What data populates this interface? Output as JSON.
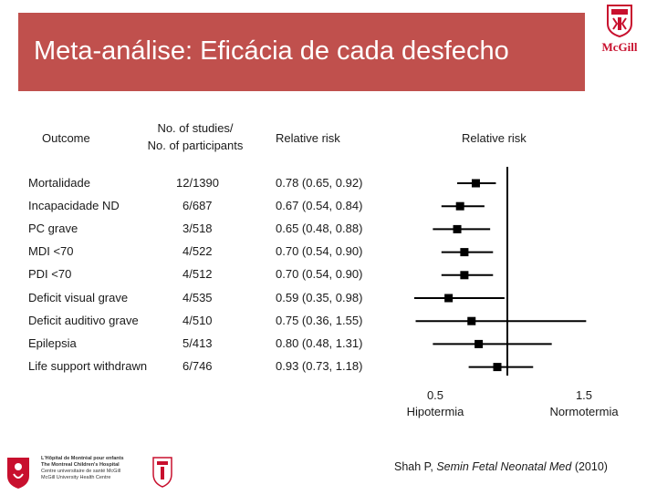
{
  "title": "Meta-análise:  Eficácia de cada desfecho",
  "headers": {
    "outcome": "Outcome",
    "studies_line1": "No. of studies/",
    "studies_line2": "No. of participants",
    "rr_text": "Relative risk",
    "rr_plot": "Relative risk"
  },
  "rows": [
    {
      "outcome": "Mortalidade",
      "studies": "12/1390",
      "rr_text": "0.78 (0.65, 0.92)"
    },
    {
      "outcome": "Incapacidade ND",
      "studies": "6/687",
      "rr_text": "0.67 (0.54, 0.84)"
    },
    {
      "outcome": "PC grave",
      "studies": "3/518",
      "rr_text": "0.65 (0.48, 0.88)"
    },
    {
      "outcome": "MDI <70",
      "studies": "4/522",
      "rr_text": "0.70 (0.54, 0.90)"
    },
    {
      "outcome": "PDI <70",
      "studies": "4/512",
      "rr_text": "0.70 (0.54, 0.90)"
    },
    {
      "outcome": "Deficit visual grave",
      "studies": "4/535",
      "rr_text": "0.59 (0.35, 0.98)"
    },
    {
      "outcome": "Deficit auditivo grave",
      "studies": "4/510",
      "rr_text": "0.75 (0.36, 1.55)"
    },
    {
      "outcome": "Epilepsia",
      "studies": "5/413",
      "rr_text": "0.80 (0.48, 1.31)"
    },
    {
      "outcome": "Life support withdrawn",
      "studies": "6/746",
      "rr_text": "0.93 (0.73, 1.18)"
    }
  ],
  "axis": {
    "left_tick": "0.5",
    "left_label": "Hipotermia",
    "right_tick": "1.5",
    "right_label": "Normotermia"
  },
  "citation": {
    "author": "Shah P, ",
    "journal": "Semin Fetal Neonatal Med",
    "year": " (2010)"
  },
  "logos": {
    "mcgill": "McGill",
    "hospital_line1": "L'Hôpital de Montréal pour enfants",
    "hospital_line2": "The Montreal Children's Hospital",
    "hospital_line3": "Centre universitaire de santé McGill",
    "hospital_line4": "McGill University Health Centre"
  },
  "colors": {
    "title_bg": "#c0504d",
    "brand_red": "#c8102e"
  },
  "chart_data": {
    "type": "forest",
    "title": "Relative risk",
    "reference_line": 1.0,
    "xlim": [
      0.35,
      1.6
    ],
    "x_ticks": [
      0.5,
      1.5
    ],
    "x_tick_labels": [
      "0.5",
      "1.5"
    ],
    "x_direction_labels": [
      "Hipotermia",
      "Normotermia"
    ],
    "categories": [
      "Mortalidade",
      "Incapacidade ND",
      "PC grave",
      "MDI <70",
      "PDI <70",
      "Deficit visual grave",
      "Deficit auditivo grave",
      "Epilepsia",
      "Life support withdrawn"
    ],
    "estimates": [
      0.78,
      0.67,
      0.65,
      0.7,
      0.7,
      0.59,
      0.75,
      0.8,
      0.93
    ],
    "ci_lower": [
      0.65,
      0.54,
      0.48,
      0.54,
      0.54,
      0.35,
      0.36,
      0.48,
      0.73
    ],
    "ci_upper": [
      0.92,
      0.84,
      0.88,
      0.9,
      0.9,
      0.98,
      1.55,
      1.31,
      1.18
    ]
  }
}
